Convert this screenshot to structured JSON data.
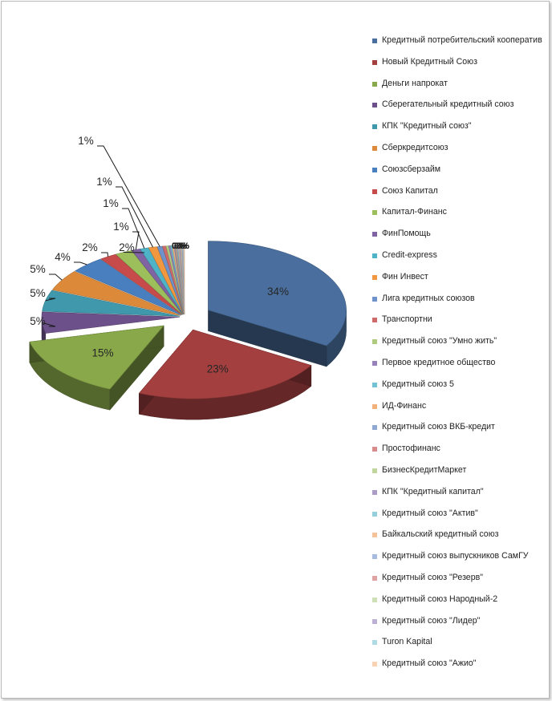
{
  "chart_data": {
    "type": "pie",
    "title": "",
    "categories": [
      "Кредитный потребительский кооператив",
      "Новый Кредитный Союз",
      "Деньги напрокат",
      "Сберегательный кредитный союз",
      "КПК \"Кредитный союз\"",
      "Сберкредитсоюз",
      "Союзсбер­займ",
      "Союз Капитал",
      "Капитал-Финанс",
      "ФинПомощь",
      "Credit-express",
      "Фин Инвест",
      "Лига кредитных союзов",
      "Транспортни",
      "Кредитный союз \"Умно жить\"",
      "Первое кредитное общество",
      "Кредитный союз 5",
      "ИД-Финанс",
      "Кредитный союз ВКБ-кредит",
      "Простофинанс",
      "БизнесКредитМаркет",
      "КПК \"Кредитный капитал\"",
      "Кредитный союз \"Актив\"",
      "Байкальский кредитный союз",
      "Кредитный союз выпускников СамГУ",
      "Кредитный союз \"Резерв\"",
      "Кредитный союз Народный-2",
      "Кредитный союз \"Лидер\"",
      "Turon Kapital",
      "Кредитный союз \"Ажио\""
    ],
    "values": [
      34,
      23,
      15,
      5,
      5,
      5,
      4,
      2,
      2,
      1,
      1,
      1,
      0.6,
      0.4,
      0.3,
      0.2,
      0.2,
      0.2,
      0.1,
      0.1,
      0.1,
      0.1,
      0.1,
      0.1,
      0.1,
      0.1,
      0.1,
      0.1,
      0.1,
      0.1
    ],
    "data_labels": [
      "34%",
      "23%",
      "15%",
      "5%",
      "5%",
      "5%",
      "4%",
      "2%",
      "2%",
      "1%",
      "1%",
      "1%",
      "1%",
      "0%",
      "0%",
      "0%",
      "0%",
      "0%",
      "0%",
      "0%",
      "0%",
      "0%",
      "0%",
      "0%",
      "0%",
      "0%",
      "0%",
      "0%",
      "0%",
      "0%"
    ],
    "colors": [
      "#4a6f9e",
      "#a33f3f",
      "#88a84a",
      "#6b5089",
      "#3f98ac",
      "#dc8a3a",
      "#4a7fbf",
      "#c74b4b",
      "#9cbf5c",
      "#7f63a3",
      "#4fb3c8",
      "#f0973f",
      "#6e92c9",
      "#cf6a6a",
      "#afcb80",
      "#9682b8",
      "#72c2d3",
      "#f2b07a",
      "#8fa9d3",
      "#d98c8c",
      "#c0d69e",
      "#ab9cc6",
      "#95cfdc",
      "#f5c39a",
      "#a8bce0",
      "#e0a3a3",
      "#cfe0b6",
      "#bcb0d3",
      "#b0dae4",
      "#f7d2b3"
    ],
    "legend_position": "right"
  }
}
